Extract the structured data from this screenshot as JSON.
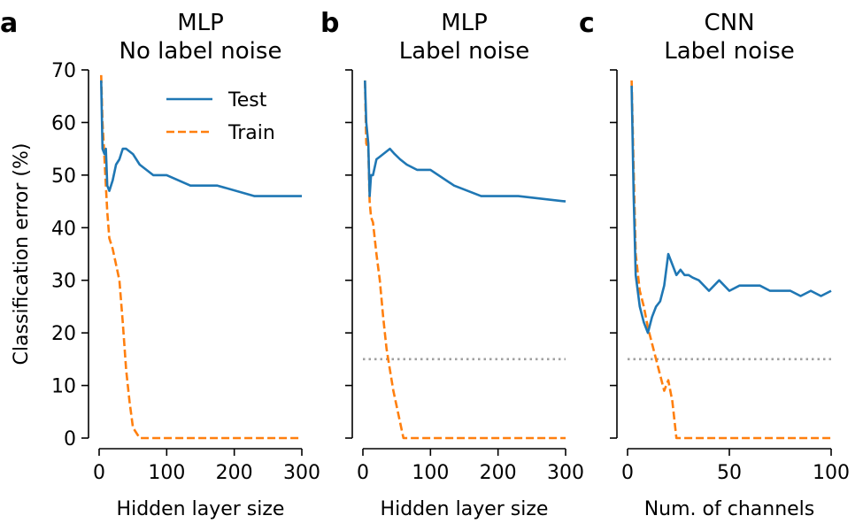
{
  "colors": {
    "test": "#1f77b4",
    "train": "#ff7f0e",
    "noise_floor": "#a0a0a0",
    "axis": "#000000"
  },
  "ylabel": "Classification error (%)",
  "chart_data": [
    {
      "type": "line",
      "panel_letter": "a",
      "title_line1": "MLP",
      "title_line2": "No label noise",
      "xlabel": "Hidden layer size",
      "xlim": [
        -3,
        300
      ],
      "ylim": [
        0,
        70
      ],
      "xticks": [
        0,
        100,
        200,
        300
      ],
      "yticks": [
        0,
        10,
        20,
        30,
        40,
        50,
        60,
        70
      ],
      "legend": {
        "placement": "top-right",
        "entries": [
          "Test",
          "Train"
        ]
      },
      "noise_line": null,
      "series": [
        {
          "name": "Test",
          "style": "solid",
          "x": [
            3,
            5,
            8,
            10,
            12,
            15,
            20,
            25,
            30,
            35,
            40,
            50,
            60,
            80,
            100,
            135,
            175,
            230,
            300
          ],
          "y": [
            68,
            55,
            54,
            55,
            48,
            47,
            49,
            52,
            53,
            55,
            55,
            54,
            52,
            50,
            50,
            48,
            48,
            46,
            46
          ]
        },
        {
          "name": "Train",
          "style": "dashed",
          "x": [
            3,
            5,
            8,
            10,
            12,
            15,
            20,
            25,
            30,
            35,
            40,
            45,
            50,
            60,
            80,
            100,
            135,
            175,
            230,
            300
          ],
          "y": [
            69,
            60,
            53,
            48,
            43,
            38,
            36,
            33,
            30,
            22,
            13,
            7,
            2,
            0,
            0,
            0,
            0,
            0,
            0,
            0
          ]
        }
      ]
    },
    {
      "type": "line",
      "panel_letter": "b",
      "title_line1": "MLP",
      "title_line2": "Label noise",
      "xlabel": "Hidden layer size",
      "xlim": [
        -3,
        300
      ],
      "ylim": [
        0,
        70
      ],
      "xticks": [
        0,
        100,
        200,
        300
      ],
      "yticks": [
        0,
        10,
        20,
        30,
        40,
        50,
        60,
        70
      ],
      "legend": null,
      "noise_line": 15,
      "series": [
        {
          "name": "Test",
          "style": "solid",
          "x": [
            3,
            5,
            8,
            10,
            12,
            15,
            20,
            25,
            30,
            35,
            40,
            47,
            55,
            65,
            80,
            100,
            135,
            175,
            230,
            300
          ],
          "y": [
            68,
            60,
            56,
            46,
            50,
            50,
            53,
            53.5,
            54,
            54.5,
            55,
            54,
            53,
            52,
            51,
            51,
            48,
            46,
            46,
            45
          ]
        },
        {
          "name": "Train",
          "style": "dashed",
          "x": [
            3,
            5,
            8,
            10,
            12,
            15,
            20,
            25,
            30,
            35,
            40,
            45,
            50,
            55,
            60,
            80,
            100,
            135,
            175,
            230,
            300
          ],
          "y": [
            68,
            56,
            55,
            45,
            42,
            41,
            35,
            30,
            23,
            17,
            13,
            9,
            6,
            3,
            0,
            0,
            0,
            0,
            0,
            0,
            0
          ]
        }
      ]
    },
    {
      "type": "line",
      "panel_letter": "c",
      "title_line1": "CNN",
      "title_line2": "Label noise",
      "xlabel": "Num. of channels",
      "xlim": [
        -1,
        100
      ],
      "ylim": [
        0,
        70
      ],
      "xticks": [
        0,
        50,
        100
      ],
      "yticks": [
        0,
        10,
        20,
        30,
        40,
        50,
        60,
        70
      ],
      "legend": null,
      "noise_line": 15,
      "series": [
        {
          "name": "Test",
          "style": "solid",
          "x": [
            2,
            3,
            4,
            6,
            8,
            10,
            12,
            14,
            16,
            18,
            20,
            22,
            24,
            26,
            28,
            30,
            32,
            35,
            40,
            45,
            50,
            55,
            60,
            65,
            70,
            75,
            80,
            85,
            90,
            95,
            100
          ],
          "y": [
            67,
            46,
            31,
            25,
            22,
            20,
            23,
            25,
            26,
            29,
            35,
            33,
            31,
            32,
            31,
            31,
            30.5,
            30,
            28,
            30,
            28,
            29,
            29,
            29,
            28,
            28,
            28,
            27,
            28,
            27,
            28
          ]
        },
        {
          "name": "Train",
          "style": "dashed",
          "x": [
            2,
            3,
            4,
            6,
            8,
            10,
            12,
            14,
            16,
            18,
            20,
            22,
            24,
            30,
            40,
            50,
            60,
            70,
            80,
            90,
            100
          ],
          "y": [
            68,
            51,
            35,
            28,
            25,
            21,
            18,
            15,
            12,
            9,
            11,
            7,
            0,
            0,
            0,
            0,
            0,
            0,
            0,
            0,
            0
          ]
        }
      ]
    }
  ]
}
